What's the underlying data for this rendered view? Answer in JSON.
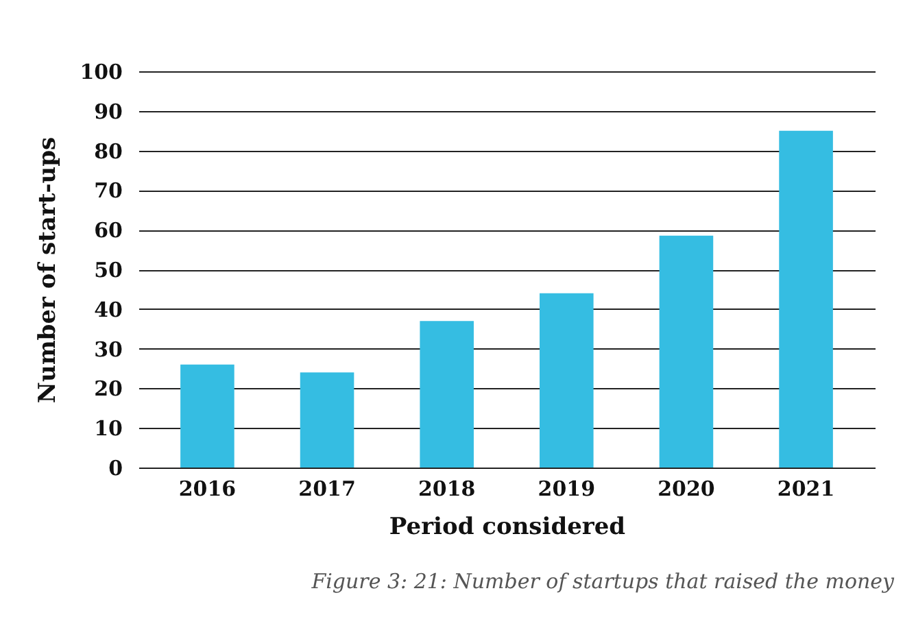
{
  "chart_data": {
    "type": "bar",
    "xlabel": "Period considered",
    "ylabel": "Number of start-ups",
    "categories": [
      "2016",
      "2017",
      "2018",
      "2019",
      "2020",
      "2021"
    ],
    "values": [
      26,
      24,
      37,
      44,
      58.5,
      85
    ],
    "color": "#35bde2",
    "ylim": [
      0,
      100
    ],
    "yticks": [
      0,
      10,
      20,
      30,
      40,
      50,
      60,
      70,
      80,
      90,
      100
    ],
    "grid": "y",
    "annotations": [
      "Figure 3: 21: Number of startups that raised the money"
    ]
  }
}
